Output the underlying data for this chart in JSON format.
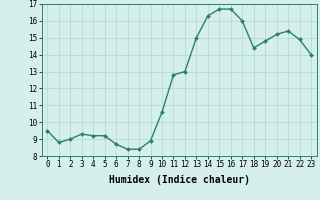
{
  "x": [
    0,
    1,
    2,
    3,
    4,
    5,
    6,
    7,
    8,
    9,
    10,
    11,
    12,
    13,
    14,
    15,
    16,
    17,
    18,
    19,
    20,
    21,
    22,
    23
  ],
  "y": [
    9.5,
    8.8,
    9.0,
    9.3,
    9.2,
    9.2,
    8.7,
    8.4,
    8.4,
    8.9,
    10.6,
    12.8,
    13.0,
    15.0,
    16.3,
    16.7,
    16.7,
    16.0,
    14.4,
    14.8,
    15.2,
    15.4,
    14.9,
    14.0
  ],
  "line_color": "#2d7f72",
  "marker_color": "#2d7f72",
  "bg_color": "#d5efec",
  "grid_color": "#b0d8d4",
  "xlabel": "Humidex (Indice chaleur)",
  "xlabel_fontsize": 7,
  "xlim": [
    -0.5,
    23.5
  ],
  "ylim": [
    8,
    17
  ],
  "yticks": [
    8,
    9,
    10,
    11,
    12,
    13,
    14,
    15,
    16,
    17
  ],
  "xtick_labels": [
    "0",
    "1",
    "2",
    "3",
    "4",
    "5",
    "6",
    "7",
    "8",
    "9",
    "10",
    "11",
    "12",
    "13",
    "14",
    "15",
    "16",
    "17",
    "18",
    "19",
    "20",
    "21",
    "22",
    "23"
  ],
  "tick_fontsize": 5.5,
  "marker_size": 2.0,
  "line_width": 1.0
}
